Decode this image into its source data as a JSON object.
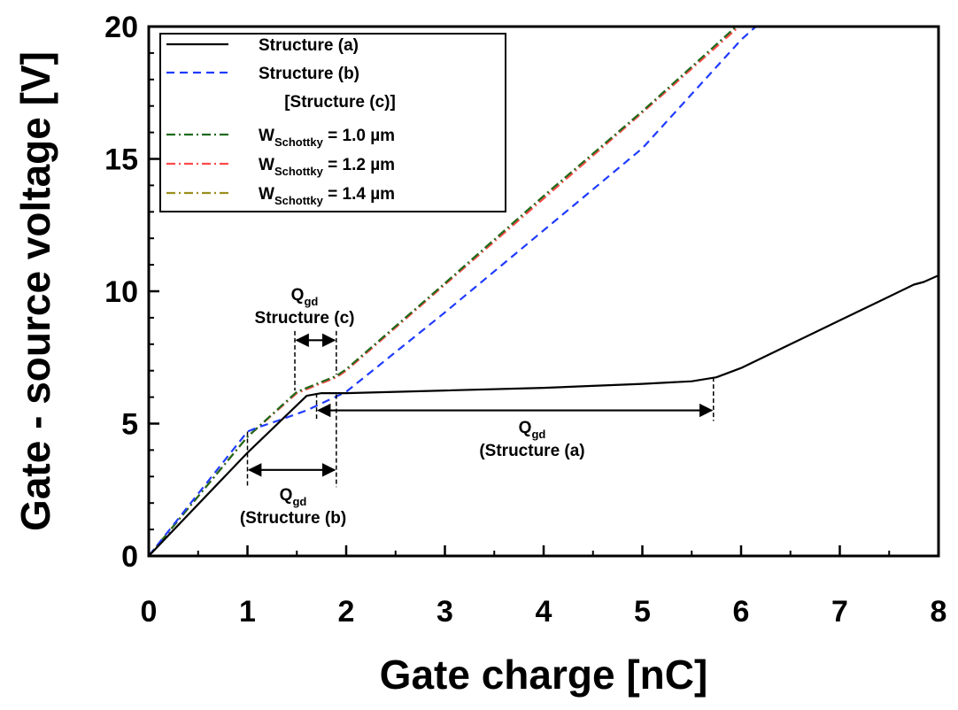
{
  "chart_data": {
    "type": "line",
    "xlabel": "Gate charge [nC]",
    "ylabel": "Gate - source voltage [V]",
    "xlim": [
      0,
      8
    ],
    "ylim": [
      0,
      20
    ],
    "xticks": [
      "0",
      "1",
      "2",
      "3",
      "4",
      "5",
      "6",
      "7",
      "8"
    ],
    "yticks": [
      "0",
      "5",
      "10",
      "15",
      "20"
    ],
    "grid": false,
    "legend": {
      "placement": "top-left",
      "header": "[Structure  (c)]"
    },
    "series": [
      {
        "name": "Structure (a)",
        "label_main": "Structure (a)",
        "color": "#000000",
        "style": "solid",
        "x": [
          0,
          1.0,
          1.6,
          1.75,
          2.0,
          3.0,
          4.0,
          5.0,
          5.5,
          5.75,
          6.0,
          6.5,
          7.0,
          7.5,
          7.75,
          7.85,
          8.0
        ],
        "y": [
          0,
          3.9,
          6.05,
          6.15,
          6.15,
          6.25,
          6.35,
          6.5,
          6.6,
          6.75,
          7.1,
          8.0,
          8.9,
          9.8,
          10.25,
          10.35,
          10.6
        ]
      },
      {
        "name": "Structure (b)",
        "label_main": "Structure (b)",
        "color": "#1f3bff",
        "style": "dashed",
        "x": [
          0,
          1.0,
          1.1,
          1.3,
          1.6,
          2.0,
          3.0,
          4.0,
          5.0,
          6.0,
          6.15
        ],
        "y": [
          0,
          4.7,
          4.85,
          5.1,
          5.5,
          6.2,
          9.2,
          12.3,
          15.4,
          19.5,
          20.0
        ]
      },
      {
        "name": "W Schottky = 1.0 µm",
        "label_main": "W",
        "label_sub": "Schottky",
        "label_rest": " = 1.0 µm",
        "color": "#1e6b1e",
        "style": "dashdot",
        "x": [
          0,
          1.0,
          1.5,
          1.9,
          2.0,
          3.0,
          4.0,
          5.0,
          5.95
        ],
        "y": [
          0,
          4.5,
          6.2,
          6.8,
          7.05,
          10.3,
          13.6,
          16.8,
          20.0
        ]
      },
      {
        "name": "W Schottky = 1.2 µm",
        "label_main": "W",
        "label_sub": "Schottky",
        "label_rest": " = 1.2 µm",
        "color": "#ff4a4a",
        "style": "dashdot",
        "x": [
          0,
          1.0,
          1.5,
          1.9,
          2.0,
          3.0,
          4.0,
          5.0,
          5.98
        ],
        "y": [
          0,
          4.5,
          6.15,
          6.75,
          7.0,
          10.25,
          13.5,
          16.75,
          20.0
        ]
      },
      {
        "name": "W Schottky = 1.4 µm",
        "label_main": "W",
        "label_sub": "Schottky",
        "label_rest": " = 1.4 µm",
        "color": "#9a8f1e",
        "style": "dashdot",
        "x": [
          0,
          1.0,
          1.5,
          1.9,
          2.0,
          3.0,
          4.0,
          5.0,
          5.96
        ],
        "y": [
          0,
          4.5,
          6.2,
          6.8,
          7.05,
          10.3,
          13.6,
          16.8,
          20.0
        ]
      }
    ],
    "annotations": [
      {
        "id": "qgd-c",
        "main": "Q",
        "sub": "gd",
        "line2": "Structure (c)",
        "x_from": 1.48,
        "x_to": 1.9,
        "y_arrow": 8.15,
        "guides": [
          {
            "x": 1.48,
            "y_from": 8.5,
            "y_to": 6.25
          },
          {
            "x": 1.9,
            "y_from": 8.5,
            "y_to": 6.85
          }
        ]
      },
      {
        "id": "qgd-a",
        "main": "Q",
        "sub": "gd",
        "line2": "(Structure (a)",
        "x_from": 1.7,
        "x_to": 5.72,
        "y_arrow": 5.5,
        "guides": [
          {
            "x": 1.7,
            "y_from": 6.15,
            "y_to": 5.1
          },
          {
            "x": 5.72,
            "y_from": 6.75,
            "y_to": 5.1
          }
        ]
      },
      {
        "id": "qgd-b",
        "main": "Q",
        "sub": "gd",
        "line2": "(Structure (b)",
        "x_from": 1.0,
        "x_to": 1.9,
        "y_arrow": 3.25,
        "guides": [
          {
            "x": 1.0,
            "y_from": 4.7,
            "y_to": 2.6
          },
          {
            "x": 1.9,
            "y_from": 6.1,
            "y_to": 2.6
          }
        ]
      }
    ]
  }
}
